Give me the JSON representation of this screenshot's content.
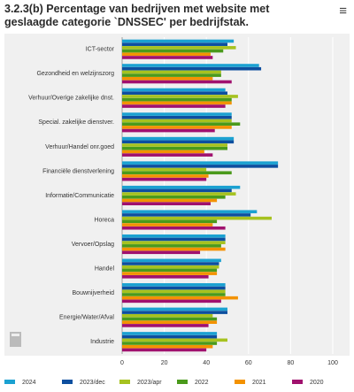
{
  "chart_data": {
    "type": "hbar",
    "title": "3.2.3(b) Percentage van bedrijven met website met geslaagde categorie `DNSSEC' per bedrijfstak.",
    "categories": [
      "ICT-sector",
      "Gezondheid en welzijnszorg",
      "Verhuur/Overige zakelijke dnst.",
      "Special. zakelijke dienstver.",
      "Verhuur/Handel onr.goed",
      "Financiële dienstverlening",
      "Informatie/Communicatie",
      "Horeca",
      "Vervoer/Opslag",
      "Handel",
      "Bouwnijverheid",
      "Energie/Water/Afval",
      "Industrie"
    ],
    "series": [
      {
        "name": "2024",
        "color": "#1ba1d1",
        "values": [
          53,
          65,
          49,
          52,
          53,
          74,
          56,
          64,
          49,
          47,
          49,
          50,
          45
        ]
      },
      {
        "name": "2023/dec",
        "color": "#0d4f9f",
        "values": [
          50,
          66,
          50,
          52,
          53,
          74,
          52,
          61,
          49,
          46,
          49,
          50,
          45
        ]
      },
      {
        "name": "2023/apr",
        "color": "#a6c21f",
        "values": [
          54,
          47,
          55,
          52,
          50,
          40,
          54,
          71,
          49,
          46,
          49,
          43,
          50
        ]
      },
      {
        "name": "2022",
        "color": "#4a9a1b",
        "values": [
          48,
          47,
          52,
          56,
          50,
          52,
          49,
          45,
          47,
          45,
          49,
          45,
          45
        ]
      },
      {
        "name": "2021",
        "color": "#f39200",
        "values": [
          42,
          43,
          52,
          52,
          39,
          41,
          45,
          43,
          49,
          45,
          55,
          45,
          43
        ]
      },
      {
        "name": "2020",
        "color": "#a0116e",
        "values": [
          43,
          52,
          49,
          44,
          43,
          40,
          42,
          49,
          37,
          41,
          47,
          41,
          40
        ]
      }
    ],
    "xlim": [
      0,
      100
    ],
    "xticks": [
      0,
      20,
      40,
      60,
      80,
      100
    ],
    "grid": true
  }
}
